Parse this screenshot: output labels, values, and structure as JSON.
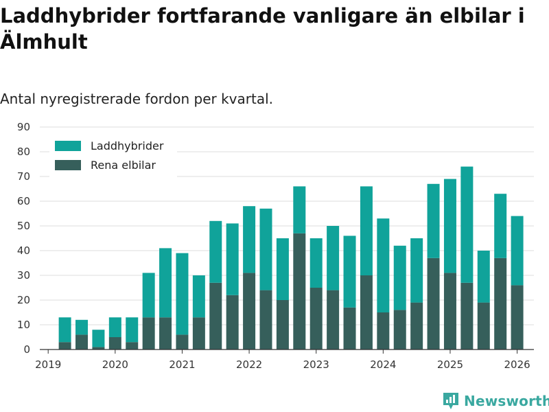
{
  "title": "Laddhybrider fortfarande vanligare än elbilar i Älmhult",
  "subtitle": "Antal nyregistrerade fordon per kvartal.",
  "brand": "Newsworthy",
  "colors": {
    "phev": "#10a39a",
    "ev": "#365f5b",
    "grid": "#dddddd",
    "axis": "#333333",
    "brand": "#3aa8a0"
  },
  "chart_data": {
    "type": "bar",
    "stacked": true,
    "title": "Laddhybrider fortfarande vanligare än elbilar i Älmhult",
    "subtitle": "Antal nyregistrerade fordon per kvartal.",
    "xlabel": "",
    "ylabel": "",
    "ylim": [
      0,
      90
    ],
    "yticks": [
      0,
      10,
      20,
      30,
      40,
      50,
      60,
      70,
      80,
      90
    ],
    "xlim": [
      2018.875,
      2026.25
    ],
    "xticks": [
      2019,
      2020,
      2021,
      2022,
      2023,
      2024,
      2025,
      2026
    ],
    "grid": true,
    "legend_position": "top-left",
    "x": [
      2019.25,
      2019.5,
      2019.75,
      2020.0,
      2020.25,
      2020.5,
      2020.75,
      2021.0,
      2021.25,
      2021.5,
      2021.75,
      2022.0,
      2022.25,
      2022.5,
      2022.75,
      2023.0,
      2023.25,
      2023.5,
      2023.75,
      2024.0,
      2024.25,
      2024.5,
      2024.75,
      2025.0,
      2025.25,
      2025.5,
      2025.75,
      2026.0
    ],
    "series": [
      {
        "name": "Rena elbilar",
        "values": [
          3,
          6,
          1,
          5,
          3,
          13,
          13,
          6,
          13,
          27,
          22,
          31,
          24,
          20,
          47,
          25,
          24,
          17,
          30,
          15,
          16,
          19,
          37,
          31,
          27,
          19,
          37,
          26
        ]
      },
      {
        "name": "Laddhybrider",
        "values": [
          10,
          6,
          7,
          8,
          10,
          18,
          28,
          33,
          17,
          25,
          29,
          27,
          33,
          25,
          19,
          20,
          26,
          29,
          36,
          38,
          26,
          26,
          30,
          38,
          47,
          21,
          26,
          28
        ]
      }
    ],
    "legend": [
      "Laddhybrider",
      "Rena elbilar"
    ]
  }
}
